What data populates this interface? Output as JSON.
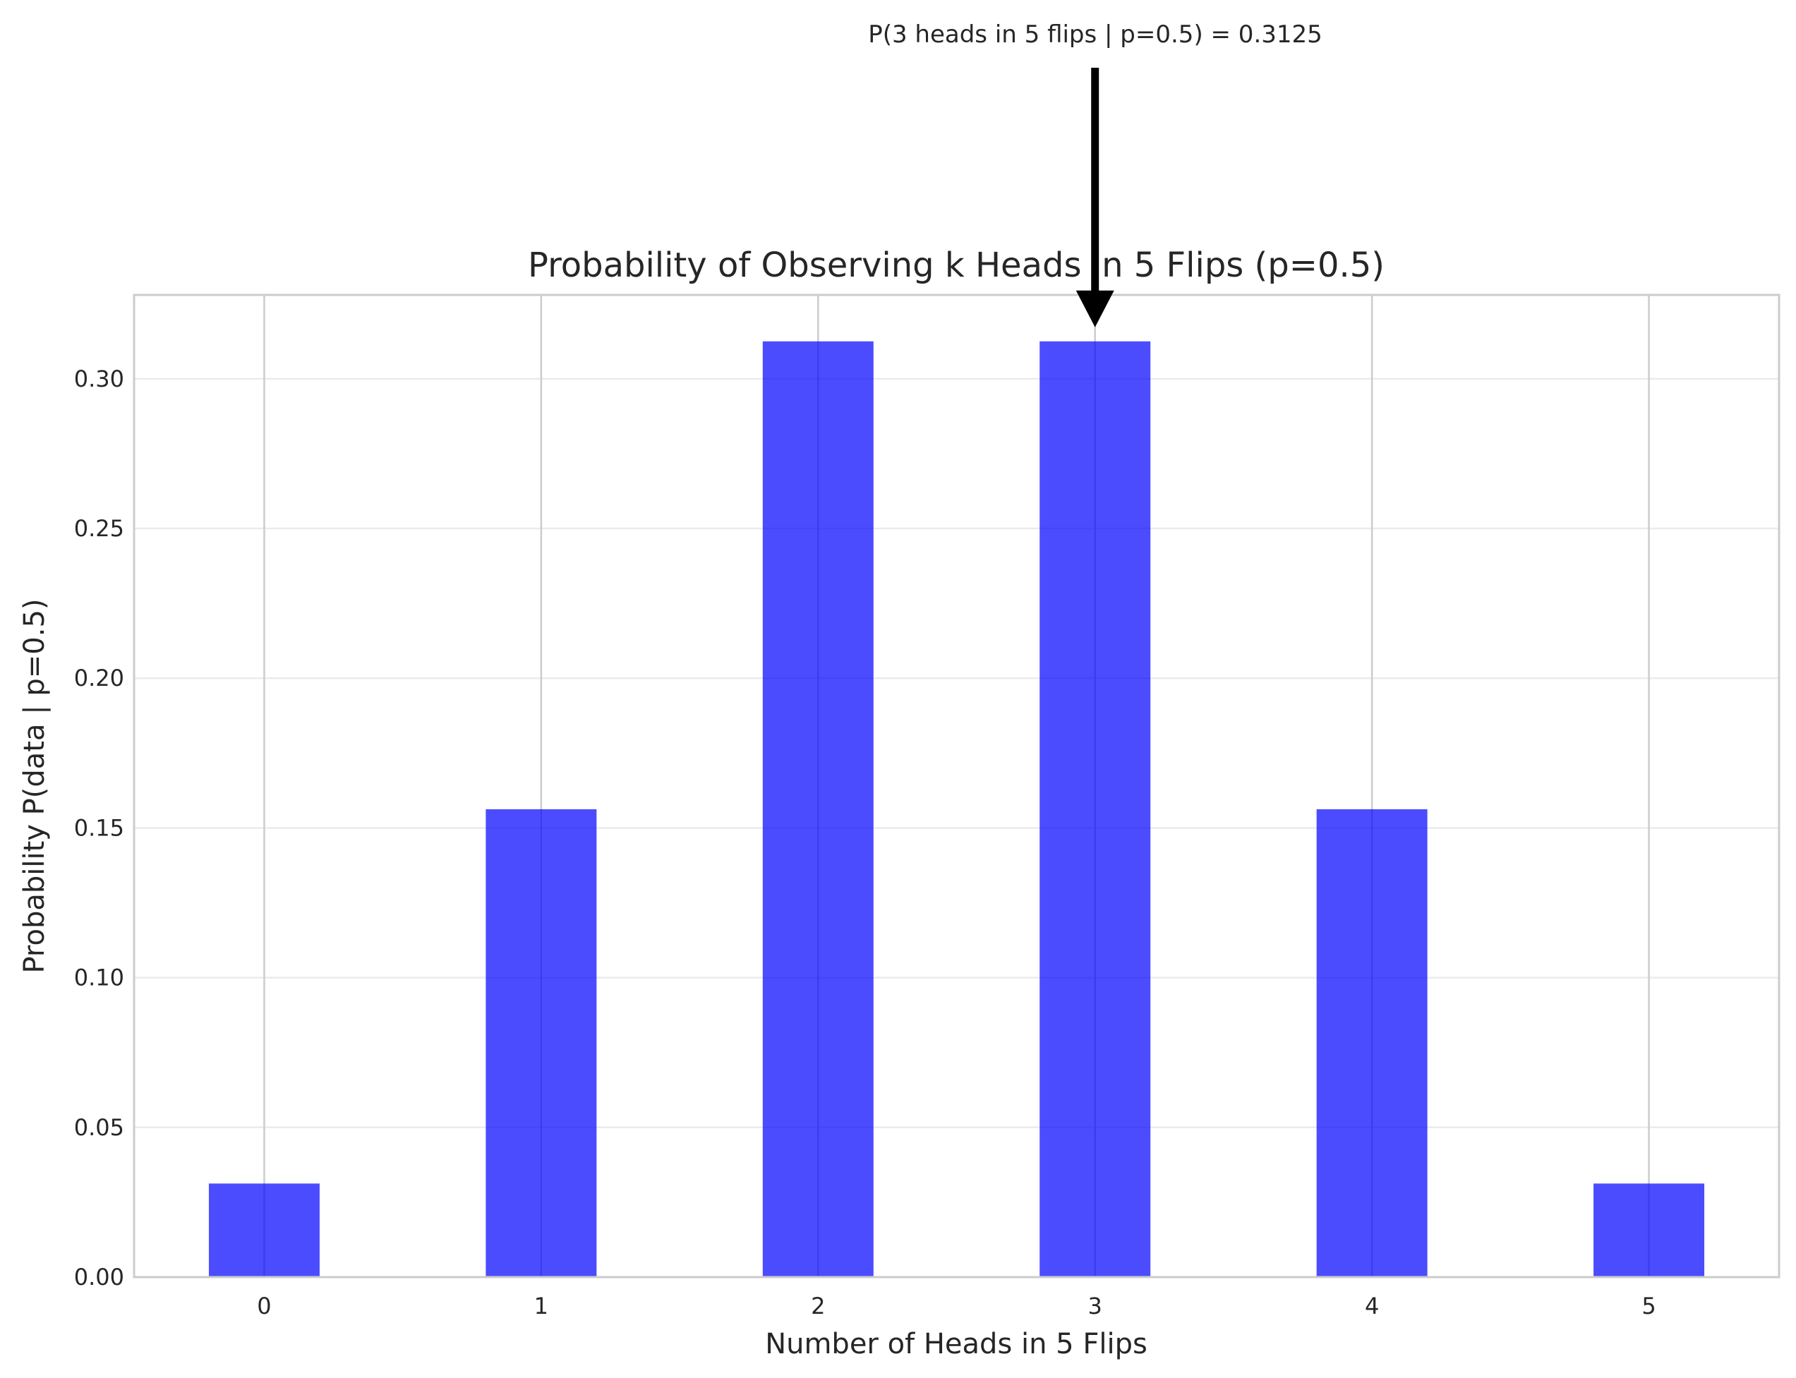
{
  "chart_data": {
    "type": "bar",
    "title": "Probability of Observing k Heads in 5 Flips (p=0.5)",
    "xlabel": "Number of Heads in 5 Flips",
    "ylabel": "Probability P(data | p=0.5)",
    "categories": [
      "0",
      "1",
      "2",
      "3",
      "4",
      "5"
    ],
    "x": [
      0,
      1,
      2,
      3,
      4,
      5
    ],
    "values": [
      0.03125,
      0.15625,
      0.3125,
      0.3125,
      0.15625,
      0.03125
    ],
    "xlim": [
      -0.47,
      5.47
    ],
    "ylim": [
      0,
      0.328
    ],
    "yticks": [
      0.0,
      0.05,
      0.1,
      0.15,
      0.2,
      0.25,
      0.3
    ],
    "ytick_labels": [
      "0.00",
      "0.05",
      "0.10",
      "0.15",
      "0.20",
      "0.25",
      "0.30"
    ],
    "xticks": [
      0,
      1,
      2,
      3,
      4,
      5
    ],
    "xtick_labels": [
      "0",
      "1",
      "2",
      "3",
      "4",
      "5"
    ],
    "bar_width": 0.4,
    "bar_color": "#0000ff",
    "bar_alpha": 0.7,
    "grid": true,
    "annotation": {
      "text": "P(3 heads in 5 flips | p=0.5) = 0.3125",
      "x": 3,
      "y": 0.3125,
      "arrow_color": "#000000"
    }
  }
}
